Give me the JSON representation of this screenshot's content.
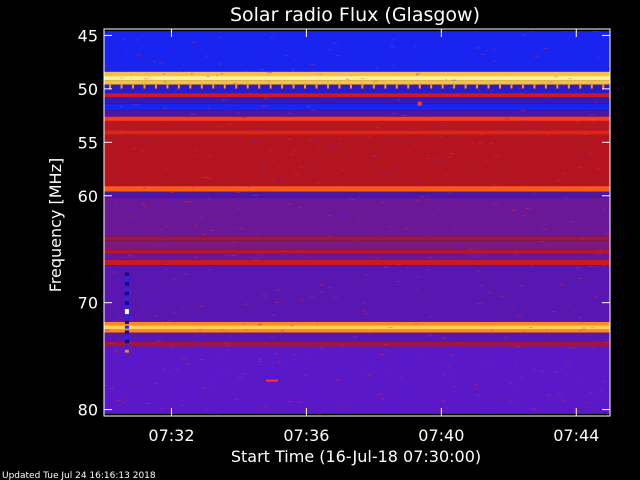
{
  "chart_data": {
    "type": "heatmap",
    "title": "Solar radio Flux (Glasgow)",
    "xlabel": "Start Time (16-Jul-18 07:30:00)",
    "ylabel": "Frequency [MHz]",
    "footer": "Updated Tue Jul 24 16:16:13 2018",
    "x_unit": "minutes after 07:30",
    "xlim": [
      0,
      15
    ],
    "ylim": [
      80,
      45
    ],
    "x_ticks": [
      {
        "label": "07:32",
        "value": 2
      },
      {
        "label": "07:36",
        "value": 6
      },
      {
        "label": "07:40",
        "value": 10
      },
      {
        "label": "07:44",
        "value": 14
      }
    ],
    "y_ticks": [
      {
        "label": "45",
        "value": 45
      },
      {
        "label": "50",
        "value": 50
      },
      {
        "label": "55",
        "value": 55
      },
      {
        "label": "60",
        "value": 60
      },
      {
        "label": "70",
        "value": 70
      },
      {
        "label": "80",
        "value": 80
      }
    ],
    "colors": {
      "background_band": "#1020ee",
      "low": "#5a18c8",
      "mid": "#8a1870",
      "high": "#c81818",
      "peak": "#ffe070"
    },
    "bands": [
      {
        "from": 44.6,
        "to": 48.4,
        "color": "#1a24f0"
      },
      {
        "from": 48.4,
        "to": 48.8,
        "color": "#f5c040"
      },
      {
        "from": 48.8,
        "to": 49.2,
        "color": "#fff0a0"
      },
      {
        "from": 49.2,
        "to": 49.6,
        "color": "#f5c040"
      },
      {
        "from": 49.6,
        "to": 50.4,
        "color": "#2a1cc8"
      },
      {
        "from": 50.4,
        "to": 50.8,
        "color": "#cc1a20"
      },
      {
        "from": 50.8,
        "to": 51.4,
        "color": "#3418b8"
      },
      {
        "from": 51.4,
        "to": 52.0,
        "color": "#1a24f0"
      },
      {
        "from": 52.0,
        "to": 52.6,
        "color": "#4a18a8"
      },
      {
        "from": 52.6,
        "to": 53.0,
        "color": "#ff3a1a"
      },
      {
        "from": 53.0,
        "to": 53.9,
        "color": "#b81622"
      },
      {
        "from": 53.9,
        "to": 54.3,
        "color": "#e02418"
      },
      {
        "from": 54.3,
        "to": 59.1,
        "color": "#b41420"
      },
      {
        "from": 59.1,
        "to": 59.6,
        "color": "#ff5a1a"
      },
      {
        "from": 59.6,
        "to": 60.2,
        "color": "#4a16a8"
      },
      {
        "from": 60.2,
        "to": 63.8,
        "color": "#6a1898"
      },
      {
        "from": 63.8,
        "to": 64.2,
        "color": "#a01640"
      },
      {
        "from": 64.2,
        "to": 65.0,
        "color": "#7a1880"
      },
      {
        "from": 65.0,
        "to": 65.4,
        "color": "#b8142a"
      },
      {
        "from": 65.4,
        "to": 66.0,
        "color": "#6a1898"
      },
      {
        "from": 66.0,
        "to": 66.5,
        "color": "#c81a20"
      },
      {
        "from": 66.5,
        "to": 71.8,
        "color": "#5a16b0"
      },
      {
        "from": 71.8,
        "to": 72.1,
        "color": "#ff8a18"
      },
      {
        "from": 72.1,
        "to": 72.5,
        "color": "#ffd060"
      },
      {
        "from": 72.5,
        "to": 72.8,
        "color": "#ff8a18"
      },
      {
        "from": 72.8,
        "to": 73.6,
        "color": "#5a16b0"
      },
      {
        "from": 73.6,
        "to": 74.1,
        "color": "#a01640"
      },
      {
        "from": 74.1,
        "to": 80.4,
        "color": "#5a18c8"
      }
    ]
  }
}
